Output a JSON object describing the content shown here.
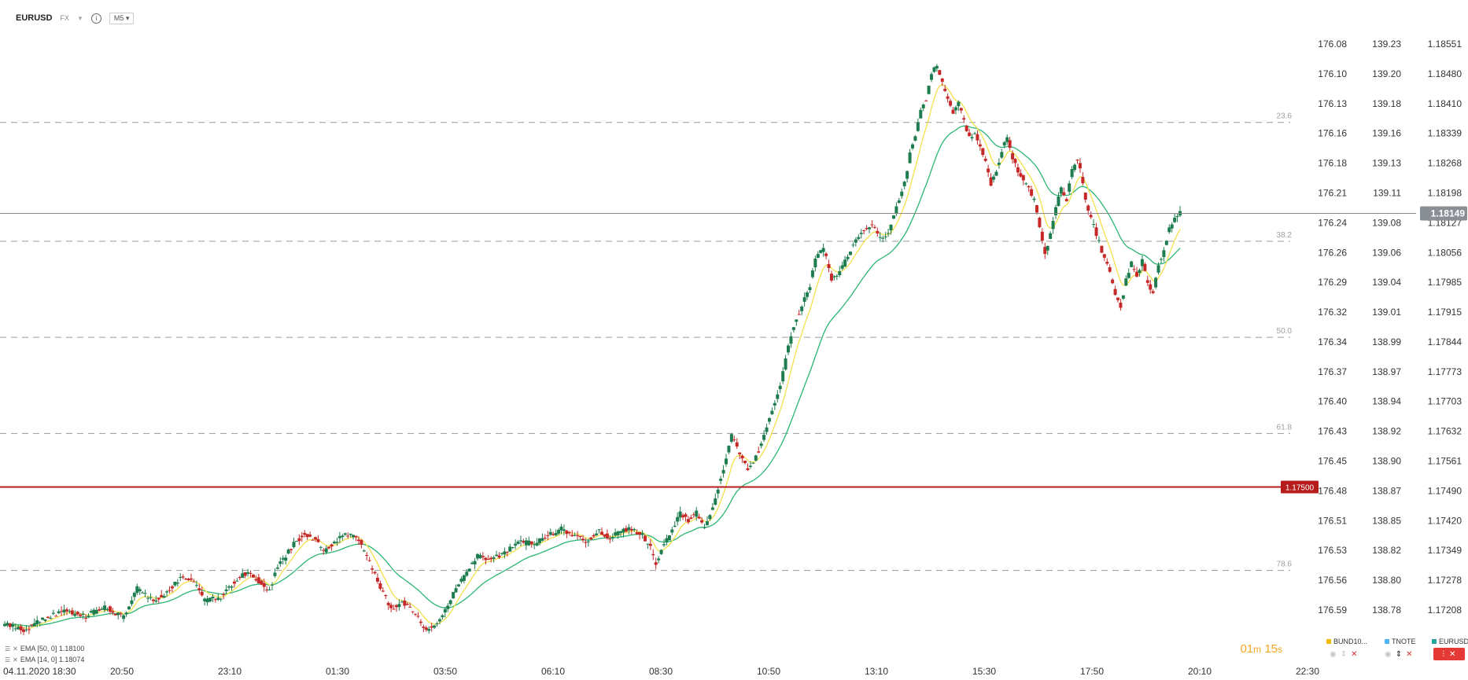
{
  "header": {
    "symbol": "EURUSD",
    "exchange": "FX",
    "timeframe": "M5"
  },
  "indicators": [
    {
      "label": "EMA [50, 0] 1.18100",
      "color": "#2bb673"
    },
    {
      "label": "EMA [14, 0] 1.18074",
      "color": "#f2e14c"
    }
  ],
  "candle_timer": {
    "minutes": "01",
    "min_unit": "m",
    "seconds": "15",
    "sec_unit": "s"
  },
  "bottom_symbols": [
    {
      "label": "BUND10...",
      "color": "#f5b800"
    },
    {
      "label": "TNOTE",
      "color": "#4fb3f6"
    },
    {
      "label": "EURUSD",
      "color": "#26a69a"
    }
  ],
  "colors": {
    "up": "#1e7d4f",
    "down": "#c62828",
    "ema50": "#2bb673",
    "ema14": "#f2e14c",
    "level": "#b71c1c"
  },
  "chart_data": {
    "type": "candlestick",
    "x_ticks": [
      "04.11.2020  18:30",
      "20:50",
      "23:10",
      "01:30",
      "03:50",
      "06:10",
      "08:30",
      "10:50",
      "13:10",
      "15:30",
      "17:50",
      "20:10",
      "22:30"
    ],
    "price_axis": {
      "ylim": [
        1.1714,
        1.1859
      ],
      "ticks": [
        "1.18551",
        "1.18480",
        "1.18410",
        "1.18339",
        "1.18268",
        "1.18198",
        "1.18127",
        "1.18056",
        "1.17985",
        "1.17915",
        "1.17844",
        "1.17773",
        "1.17703",
        "1.17632",
        "1.17561",
        "1.17490",
        "1.17420",
        "1.17349",
        "1.17278",
        "1.17208"
      ],
      "current_price": "1.18149"
    },
    "secondary_axes": [
      {
        "ticks": [
          "176.08",
          "176.10",
          "176.13",
          "176.16",
          "176.18",
          "176.21",
          "176.24",
          "176.26",
          "176.29",
          "176.32",
          "176.34",
          "176.37",
          "176.40",
          "176.43",
          "176.45",
          "176.48",
          "176.51",
          "176.53",
          "176.56",
          "176.59"
        ]
      },
      {
        "ticks": [
          "139.23",
          "139.20",
          "139.18",
          "139.16",
          "139.13",
          "139.11",
          "139.08",
          "139.06",
          "139.04",
          "139.01",
          "138.99",
          "138.97",
          "138.94",
          "138.92",
          "138.90",
          "138.87",
          "138.85",
          "138.82",
          "138.80",
          "138.78"
        ]
      }
    ],
    "horizontal_level": {
      "price": 1.175,
      "label": "1.17500"
    },
    "fibonacci": [
      {
        "label": "23.6",
        "price": 1.18365
      },
      {
        "label": "38.2",
        "price": 1.18083
      },
      {
        "label": "50.0",
        "price": 1.17855
      },
      {
        "label": "61.8",
        "price": 1.17627
      },
      {
        "label": "78.6",
        "price": 1.17302
      }
    ],
    "close_path": [
      [
        0,
        1.17175
      ],
      [
        15,
        1.1716
      ],
      [
        30,
        1.1719
      ],
      [
        45,
        1.17205
      ],
      [
        60,
        1.17195
      ],
      [
        75,
        1.17215
      ],
      [
        88,
        1.1719
      ],
      [
        98,
        1.1726
      ],
      [
        110,
        1.1723
      ],
      [
        120,
        1.1725
      ],
      [
        132,
        1.1729
      ],
      [
        140,
        1.17275
      ],
      [
        148,
        1.1723
      ],
      [
        160,
        1.1724
      ],
      [
        170,
        1.17275
      ],
      [
        180,
        1.173
      ],
      [
        190,
        1.1727
      ],
      [
        196,
        1.17255
      ],
      [
        202,
        1.1731
      ],
      [
        214,
        1.17365
      ],
      [
        222,
        1.1739
      ],
      [
        230,
        1.17375
      ],
      [
        236,
        1.17345
      ],
      [
        244,
        1.1737
      ],
      [
        252,
        1.1739
      ],
      [
        262,
        1.17375
      ],
      [
        270,
        1.1732
      ],
      [
        280,
        1.1725
      ],
      [
        286,
        1.1721
      ],
      [
        294,
        1.1723
      ],
      [
        304,
        1.172
      ],
      [
        312,
        1.17155
      ],
      [
        322,
        1.17185
      ],
      [
        332,
        1.17245
      ],
      [
        340,
        1.1729
      ],
      [
        350,
        1.17335
      ],
      [
        362,
        1.1733
      ],
      [
        372,
        1.1735
      ],
      [
        382,
        1.1737
      ],
      [
        392,
        1.17365
      ],
      [
        402,
        1.17385
      ],
      [
        412,
        1.174
      ],
      [
        422,
        1.17385
      ],
      [
        430,
        1.1737
      ],
      [
        440,
        1.17395
      ],
      [
        448,
        1.1738
      ],
      [
        456,
        1.17395
      ],
      [
        464,
        1.174
      ],
      [
        472,
        1.17385
      ],
      [
        478,
        1.17355
      ],
      [
        482,
        1.1732
      ],
      [
        488,
        1.17365
      ],
      [
        494,
        1.17395
      ],
      [
        500,
        1.1744
      ],
      [
        506,
        1.1742
      ],
      [
        512,
        1.1744
      ],
      [
        518,
        1.174
      ],
      [
        524,
        1.1745
      ],
      [
        530,
        1.1752
      ],
      [
        534,
        1.1757
      ],
      [
        538,
        1.1762
      ],
      [
        544,
        1.1758
      ],
      [
        550,
        1.1754
      ],
      [
        556,
        1.1757
      ],
      [
        562,
        1.1762
      ],
      [
        568,
        1.1768
      ],
      [
        574,
        1.1774
      ],
      [
        578,
        1.178
      ],
      [
        582,
        1.1786
      ],
      [
        586,
        1.179
      ],
      [
        590,
        1.1793
      ],
      [
        596,
        1.1798
      ],
      [
        600,
        1.1804
      ],
      [
        606,
        1.1807
      ],
      [
        612,
        1.1799
      ],
      [
        618,
        1.1801
      ],
      [
        624,
        1.1805
      ],
      [
        630,
        1.1809
      ],
      [
        636,
        1.1811
      ],
      [
        642,
        1.1812
      ],
      [
        648,
        1.1809
      ],
      [
        654,
        1.181
      ],
      [
        660,
        1.1816
      ],
      [
        666,
        1.1822
      ],
      [
        670,
        1.1829
      ],
      [
        674,
        1.1833
      ],
      [
        678,
        1.1839
      ],
      [
        682,
        1.1842
      ],
      [
        686,
        1.1848
      ],
      [
        690,
        1.185
      ],
      [
        694,
        1.1846
      ],
      [
        698,
        1.1842
      ],
      [
        702,
        1.1839
      ],
      [
        706,
        1.1841
      ],
      [
        710,
        1.1837
      ],
      [
        714,
        1.1833
      ],
      [
        718,
        1.1834
      ],
      [
        722,
        1.1831
      ],
      [
        726,
        1.1827
      ],
      [
        730,
        1.1822
      ],
      [
        734,
        1.1825
      ],
      [
        738,
        1.183
      ],
      [
        742,
        1.1833
      ],
      [
        746,
        1.1828
      ],
      [
        750,
        1.1825
      ],
      [
        756,
        1.1822
      ],
      [
        762,
        1.1818
      ],
      [
        766,
        1.1812
      ],
      [
        770,
        1.1805
      ],
      [
        774,
        1.181
      ],
      [
        778,
        1.1816
      ],
      [
        782,
        1.1821
      ],
      [
        786,
        1.1818
      ],
      [
        790,
        1.1825
      ],
      [
        794,
        1.1828
      ],
      [
        798,
        1.1822
      ],
      [
        802,
        1.1815
      ],
      [
        806,
        1.1812
      ],
      [
        810,
        1.1808
      ],
      [
        814,
        1.1804
      ],
      [
        818,
        1.1801
      ],
      [
        822,
        1.1796
      ],
      [
        826,
        1.1793
      ],
      [
        830,
        1.1799
      ],
      [
        834,
        1.1803
      ],
      [
        838,
        1.18
      ],
      [
        842,
        1.1804
      ],
      [
        846,
        1.1798
      ],
      [
        850,
        1.1796
      ],
      [
        854,
        1.1803
      ],
      [
        858,
        1.1806
      ],
      [
        862,
        1.1811
      ],
      [
        866,
        1.1814
      ],
      [
        870,
        1.18149
      ]
    ]
  }
}
